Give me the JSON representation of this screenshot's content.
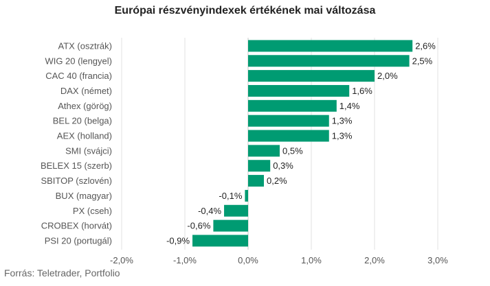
{
  "chart_data": {
    "type": "bar",
    "orientation": "horizontal",
    "title": "Európai részvényindexek értékének mai változása",
    "source": "Forrás: Teletrader, Portfolio",
    "bar_color": "#009b72",
    "grid": true,
    "xlim": [
      -2.0,
      3.0
    ],
    "x_ticks": [
      -2.0,
      -1.0,
      0.0,
      1.0,
      2.0,
      3.0
    ],
    "x_tick_labels": [
      "-2,0%",
      "-1,0%",
      "0,0%",
      "1,0%",
      "2,0%",
      "3,0%"
    ],
    "categories": [
      "ATX (osztrák)",
      "WIG 20 (lengyel)",
      "CAC 40 (francia)",
      "DAX (német)",
      "Athex (görög)",
      "BEL 20 (belga)",
      "AEX (holland)",
      "SMI (svájci)",
      "BELEX 15 (szerb)",
      "SBITOP (szlovén)",
      "BUX (magyar)",
      "PX (cseh)",
      "CROBEX (horvát)",
      "PSI 20 (portugál)"
    ],
    "values": [
      2.6,
      2.55,
      2.0,
      1.6,
      1.4,
      1.28,
      1.28,
      0.5,
      0.35,
      0.25,
      -0.05,
      -0.38,
      -0.55,
      -0.88
    ],
    "value_labels": [
      "2,6%",
      "2,5%",
      "2,0%",
      "1,6%",
      "1,4%",
      "1,3%",
      "1,3%",
      "0,5%",
      "0,3%",
      "0,2%",
      "-0,1%",
      "-0,4%",
      "-0,6%",
      "-0,9%"
    ]
  }
}
